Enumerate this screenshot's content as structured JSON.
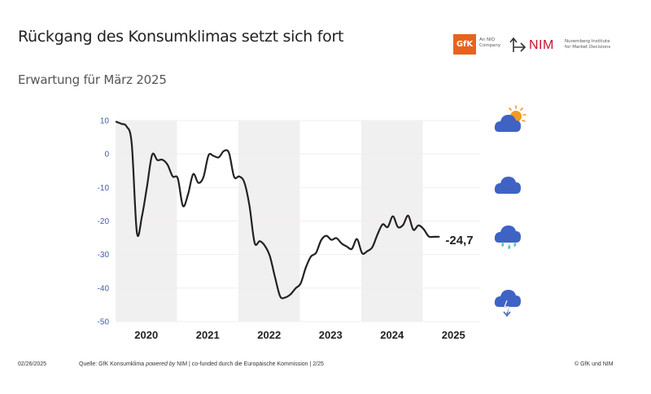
{
  "header": {
    "title": "Rückgang des Konsumklimas setzt sich fort",
    "subtitle": "Erwartung für März 2025"
  },
  "logos": {
    "gfk": {
      "mark": "GfK",
      "tagline_1": "An NIQ",
      "tagline_2": "Company",
      "color": "#e8631c"
    },
    "nim": {
      "mark": "NIM",
      "tagline_1": "Nuremberg Institute",
      "tagline_2": "for Market Decisions",
      "color": "#c8102e"
    }
  },
  "weather_icons": [
    {
      "name": "sun-cloud-icon",
      "level": 10
    },
    {
      "name": "cloud-icon",
      "level": -10
    },
    {
      "name": "rain-cloud-icon",
      "level": -25
    },
    {
      "name": "thunder-cloud-icon",
      "level": -45
    }
  ],
  "colors": {
    "line": "#222222",
    "band": "#f1f0f0",
    "axis_text": "#3f5ea8",
    "cloud": "#3f63c4",
    "sun": "#f39a1f",
    "rain": "#5fc6c4"
  },
  "chart_data": {
    "type": "line",
    "title": "Rückgang des Konsumklimas setzt sich fort",
    "subtitle": "Erwartung für März 2025",
    "xlabel": "",
    "ylabel": "",
    "ylim": [
      -50,
      10
    ],
    "yticks": [
      "10",
      "0",
      "-10",
      "-20",
      "-30",
      "-40",
      "-50"
    ],
    "ytick_values": [
      10,
      0,
      -10,
      -20,
      -30,
      -40,
      -50
    ],
    "xticks": [
      "2020",
      "2021",
      "2022",
      "2023",
      "2024",
      "2025"
    ],
    "x_start": "2020-01",
    "grid": true,
    "shaded_years": [
      "2020",
      "2022",
      "2024"
    ],
    "series": [
      {
        "name": "GfK Konsumklima",
        "x_months": [
          0,
          1,
          2,
          3,
          4,
          5,
          6,
          7,
          8,
          9,
          10,
          11,
          12,
          13,
          14,
          15,
          16,
          17,
          18,
          19,
          20,
          21,
          22,
          23,
          24,
          25,
          26,
          27,
          28,
          29,
          30,
          31,
          32,
          33,
          34,
          35,
          36,
          37,
          38,
          39,
          40,
          41,
          42,
          43,
          44,
          45,
          46,
          47,
          48,
          49,
          50,
          51,
          52,
          53,
          54,
          55,
          56,
          57,
          58,
          59,
          60,
          61,
          62,
          63
        ],
        "values": [
          9.6,
          9.0,
          8.2,
          3.0,
          -23.4,
          -18.5,
          -9.5,
          -0.2,
          -1.8,
          -1.7,
          -3.2,
          -6.7,
          -7.3,
          -15.5,
          -12.0,
          -6.0,
          -8.6,
          -6.9,
          -0.4,
          -0.6,
          -1.0,
          0.9,
          0.3,
          -6.8,
          -6.7,
          -8.5,
          -15.5,
          -26.5,
          -26.0,
          -27.4,
          -30.6,
          -36.8,
          -42.5,
          -42.8,
          -41.9,
          -40.1,
          -38.6,
          -33.9,
          -30.6,
          -29.5,
          -25.7,
          -24.4,
          -25.6,
          -25.1,
          -26.7,
          -27.6,
          -28.3,
          -25.4,
          -29.6,
          -29.0,
          -27.8,
          -24.0,
          -21.0,
          -21.8,
          -18.6,
          -21.8,
          -21.2,
          -18.4,
          -22.6,
          -21.3,
          -22.4,
          -24.6,
          -24.7,
          -24.7
        ]
      }
    ],
    "annotations": [
      {
        "text": "-24,7",
        "value": -24.7,
        "month": "2025-03"
      }
    ]
  },
  "footer": {
    "date": "02/26/2025",
    "source_prefix": "Quelle: GfK Konsumklima ",
    "source_italic": "powered by",
    "source_suffix": " NIM | co-funded durch die Europäische Kommission | 2/25",
    "copyright": "© GfK und NIM"
  }
}
